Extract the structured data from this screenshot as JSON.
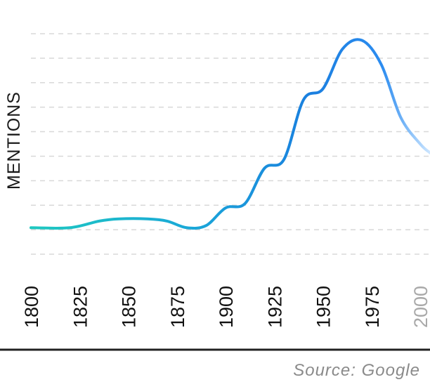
{
  "chart_data": {
    "type": "line",
    "title": "",
    "xlabel": "",
    "ylabel": "MENTIONS",
    "source": "Source: Google",
    "x_ticks": [
      "1800",
      "1825",
      "1850",
      "1875",
      "1900",
      "1925",
      "1950",
      "1975",
      "2000"
    ],
    "xlim": [
      1800,
      2005
    ],
    "ylim": [
      0,
      10
    ],
    "grid": true,
    "series": [
      {
        "x": [
          1800,
          1820,
          1835,
          1845,
          1860,
          1870,
          1880,
          1890,
          1900,
          1910,
          1920,
          1930,
          1940,
          1950,
          1960,
          1970,
          1980,
          1990,
          2000,
          2005
        ],
        "values": [
          1.2,
          1.2,
          1.5,
          1.6,
          1.6,
          1.5,
          1.2,
          1.3,
          2.1,
          2.3,
          3.9,
          4.3,
          7.0,
          7.5,
          9.3,
          9.7,
          8.6,
          6.2,
          5.0,
          4.6
        ]
      }
    ],
    "colors": {
      "line_start": "#1ec8c0",
      "line_mid": "#1a86e0",
      "line_end": "#cde6ff",
      "grid": "#d8d8d8",
      "baseline": "#222222",
      "faded_tick": "#a9a9a9"
    }
  }
}
